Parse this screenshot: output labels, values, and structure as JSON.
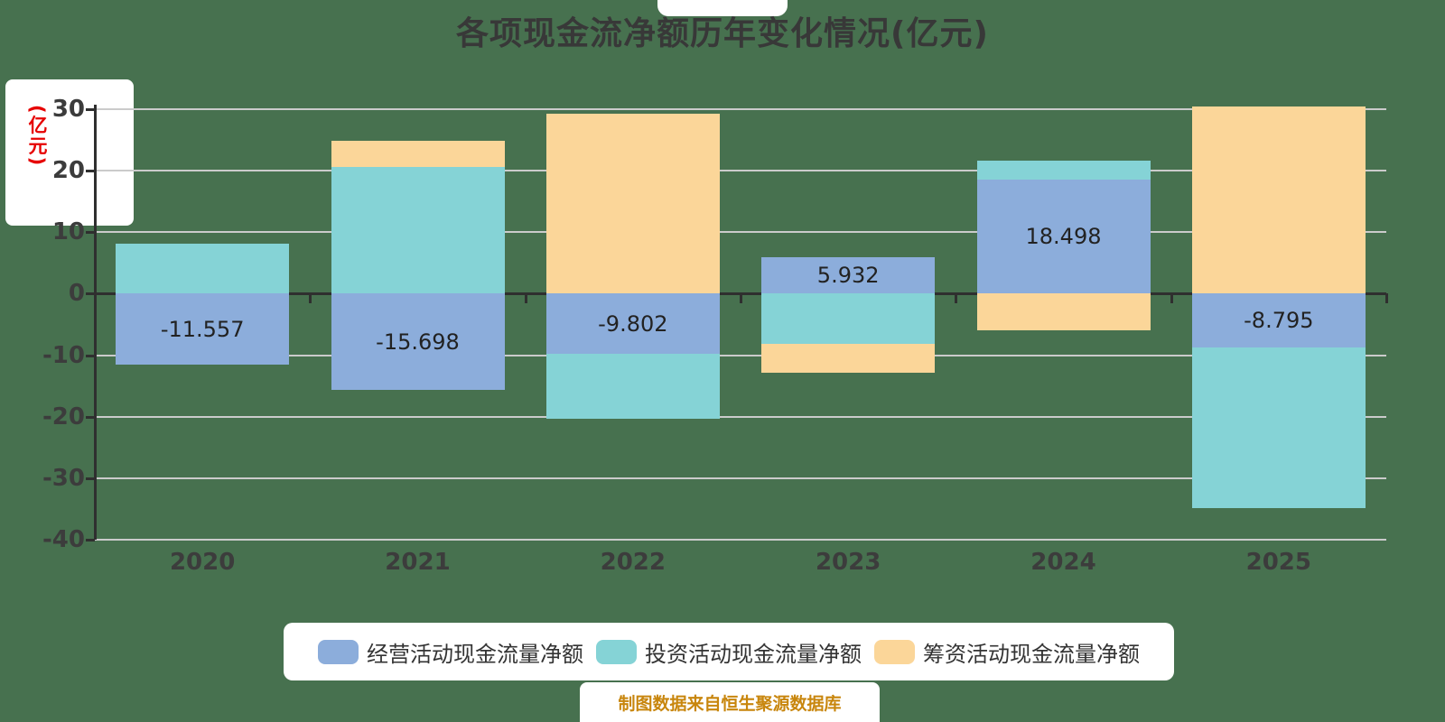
{
  "title": "各项现金流净额历年变化情况(亿元)",
  "y_axis_unit_label": "(亿元)",
  "source_note": "制图数据来自恒生聚源数据库",
  "colors": {
    "background": "#47714F",
    "panel": "#FFFFFF",
    "operating": "#8CADDB",
    "investing": "#85D3D6",
    "financing": "#FBD699",
    "grid_line": "#CBCBCB",
    "axis_line": "#2F2F2F",
    "tick_label": "#3C3C3C",
    "title_text": "#383838",
    "unit_label_text": "#E60000",
    "source_note_text": "#C8860D",
    "bar_value_label_text": "#222222"
  },
  "legend": [
    {
      "key": "operating",
      "label": "经营活动现金流量净额"
    },
    {
      "key": "investing",
      "label": "投资活动现金流量净额"
    },
    {
      "key": "financing",
      "label": "筹资活动现金流量净额"
    }
  ],
  "chart_data": {
    "type": "bar",
    "stacked": true,
    "grid": true,
    "legend_position": "bottom",
    "categories": [
      "2020",
      "2021",
      "2022",
      "2023",
      "2024",
      "2025"
    ],
    "series": [
      {
        "key": "operating",
        "name": "经营活动现金流量净额",
        "values": [
          -11.557,
          -15.698,
          -9.802,
          5.932,
          18.498,
          -8.795
        ],
        "labeled": true,
        "estimated": false
      },
      {
        "key": "investing",
        "name": "投资活动现金流量净额",
        "values": [
          8.1,
          20.6,
          -10.5,
          -8.2,
          3.1,
          -26.1
        ],
        "labeled": false,
        "estimated": true
      },
      {
        "key": "financing",
        "name": "筹资活动现金流量净额",
        "values": [
          0,
          4.3,
          29.2,
          -4.7,
          -6.0,
          30.4
        ],
        "labeled": false,
        "estimated": true
      }
    ],
    "bar_value_labels": [
      "-11.557",
      "-15.698",
      "-9.802",
      "5.932",
      "18.498",
      "-8.795"
    ],
    "y_axis": {
      "min": -40,
      "max": 30,
      "step": 10,
      "ticks": [
        30,
        20,
        10,
        0,
        -10,
        -20,
        -30,
        -40
      ]
    }
  }
}
